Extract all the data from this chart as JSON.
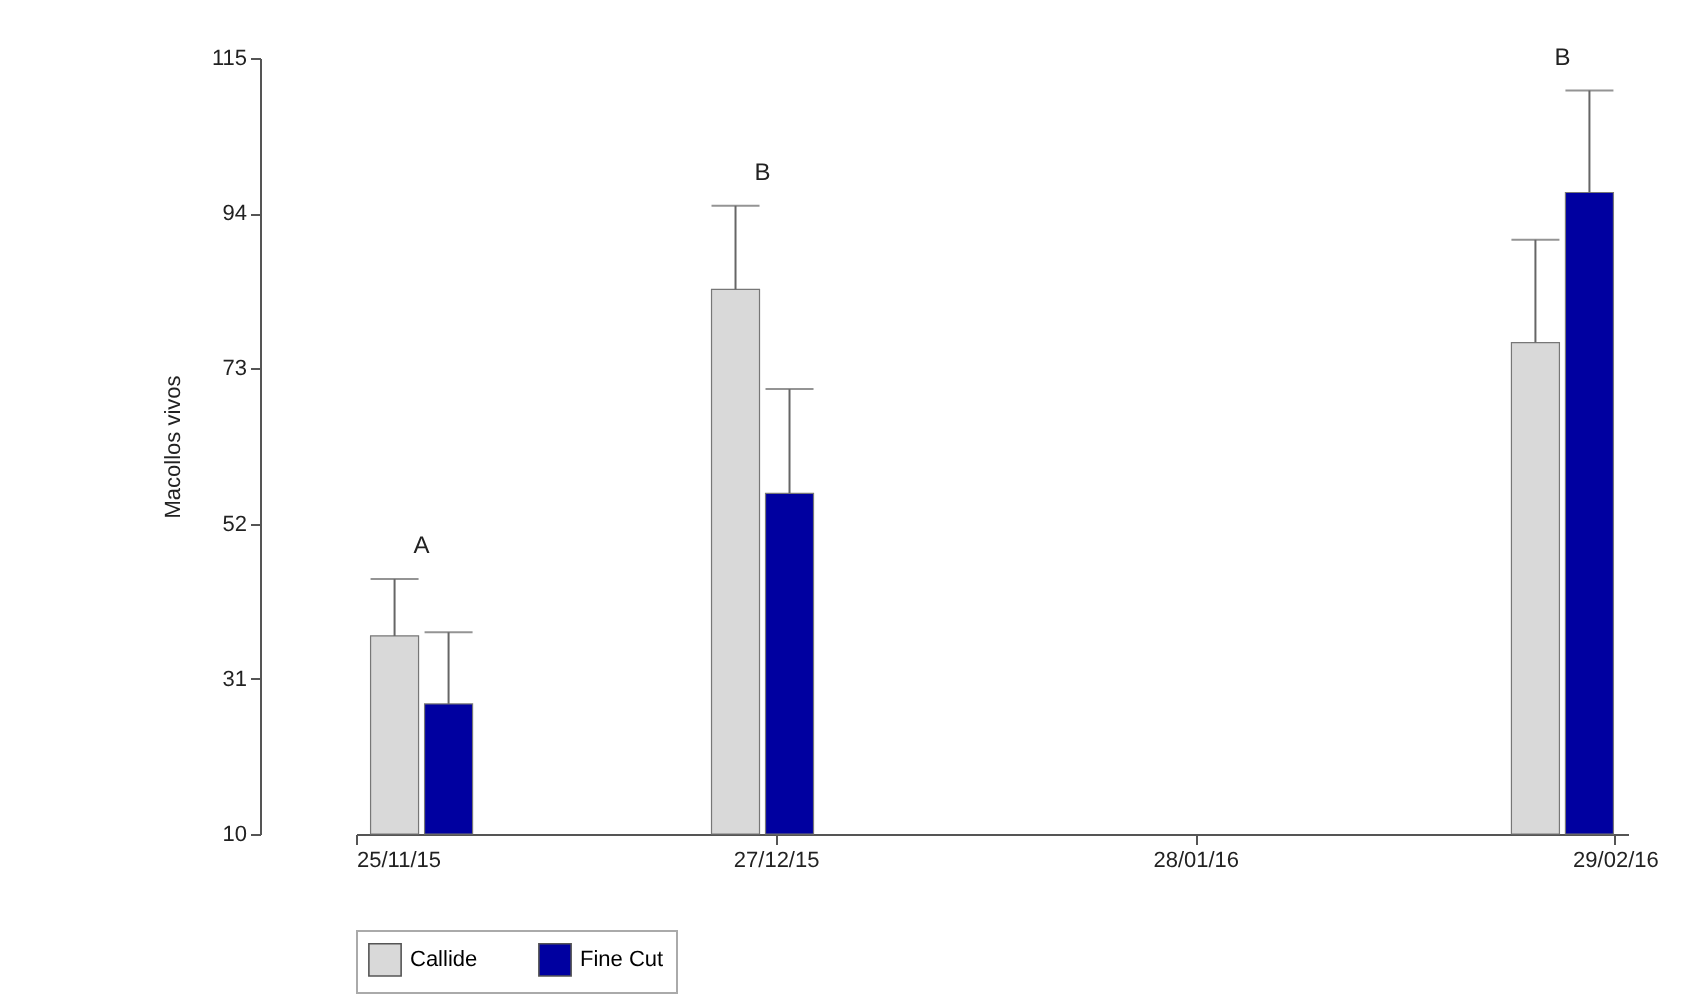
{
  "chart_data": {
    "type": "bar",
    "ylabel": "Macollos vivos",
    "x": [
      "2015-11-30",
      "2015-12-26",
      "2016-02-25"
    ],
    "series": [
      {
        "name": "Callide",
        "color": "#d9d9d9",
        "values": [
          36.8,
          83.7,
          76.5
        ],
        "errors": [
          [
            36.8,
            44.5
          ],
          [
            83.7,
            95.0
          ],
          [
            76.5,
            90.4
          ]
        ]
      },
      {
        "name": "Fine Cut",
        "color": "#0000a0",
        "values": [
          27.6,
          56.1,
          96.8
        ],
        "errors": [
          [
            27.6,
            37.3
          ],
          [
            56.1,
            70.2
          ],
          [
            96.8,
            110.6
          ]
        ]
      }
    ],
    "xlim": [
      "2015-11-25",
      "2016-03-01"
    ],
    "xticks": [
      {
        "value": "2015-11-25",
        "label": "25/11/15"
      },
      {
        "value": "2015-12-27",
        "label": "27/12/15"
      },
      {
        "value": "2016-01-28",
        "label": "28/01/16"
      },
      {
        "value": "2016-02-29",
        "label": "29/02/16"
      }
    ],
    "ylim": [
      10,
      115
    ],
    "yticks": [
      10,
      31,
      52,
      73,
      94,
      115
    ],
    "annotations": [
      "A",
      "B",
      "B"
    ],
    "grid": false,
    "legend": "bottom"
  }
}
